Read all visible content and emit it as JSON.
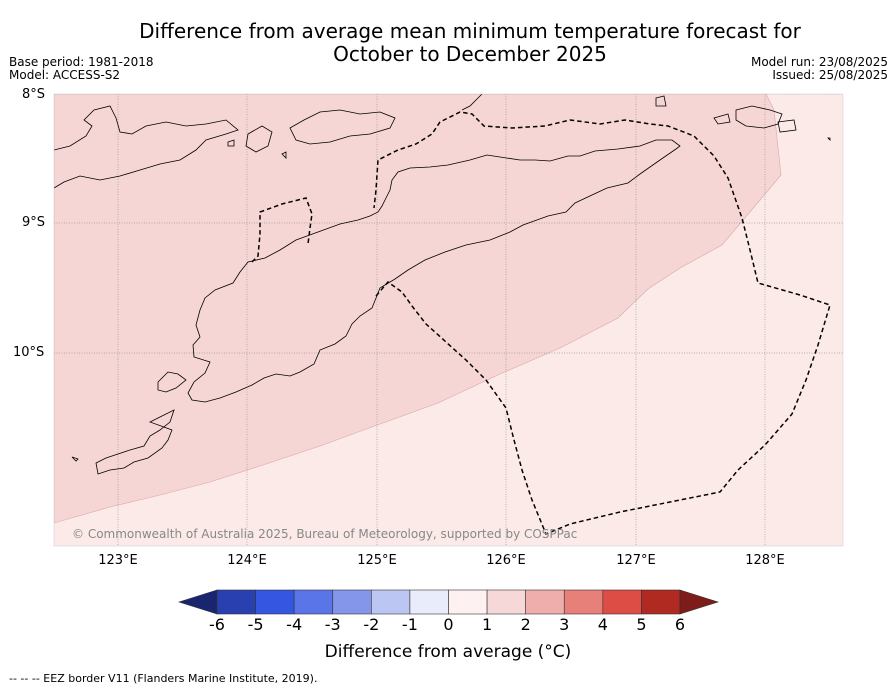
{
  "title_line1": "Difference from average mean minimum temperature forecast for",
  "title_line2": "October to December 2025",
  "base_period": "Base period: 1981-2018",
  "model": "Model: ACCESS-S2",
  "model_run": "Model run: 23/08/2025",
  "issued": "Issued: 25/08/2025",
  "lat_labels": [
    "8°S",
    "9°S",
    "10°S"
  ],
  "lon_labels": [
    "123°E",
    "124°E",
    "125°E",
    "126°E",
    "127°E",
    "128°E"
  ],
  "copyright": "© Commonwealth of Australia 2025, Bureau of Meteorology, supported by COSPPac",
  "colorbar": {
    "label": "Difference from average (°C)",
    "ticks": [
      "-6",
      "-5",
      "-4",
      "-3",
      "-2",
      "-1",
      "0",
      "1",
      "2",
      "3",
      "4",
      "5",
      "6"
    ],
    "colors": [
      "#1a2570",
      "#2940b0",
      "#3556e0",
      "#5a75e8",
      "#8496ea",
      "#bcc6f2",
      "#e8ecfb",
      "#fdf1f1",
      "#f7d8d8",
      "#efaeac",
      "#e8807a",
      "#dd4d45",
      "#b02a22",
      "#7d1c18"
    ]
  },
  "legend_colors": {
    "zone_0_1": "#fbeae8",
    "zone_1_2": "#f5d6d5"
  },
  "footnote": "--  --  -- EEZ border V11 (Flanders Marine Institute, 2019)."
}
